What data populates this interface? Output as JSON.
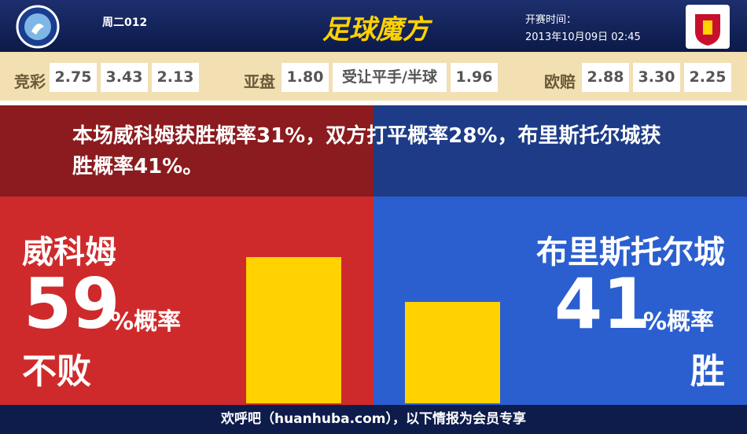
{
  "header": {
    "match_code": "周二012",
    "brand": "足球魔方",
    "kickoff_label": "开赛时间：",
    "kickoff_time": "2013年10月09日 02:45"
  },
  "odds": [
    {
      "label": "竞彩",
      "values": [
        "2.75",
        "3.43",
        "2.13"
      ]
    },
    {
      "label": "亚盘",
      "values": [
        "1.80",
        "受让平手/半球",
        "1.96"
      ]
    },
    {
      "label": "欧赔",
      "values": [
        "2.88",
        "3.30",
        "2.25"
      ]
    }
  ],
  "summary": "本场威科姆获胜概率31%，双方打平概率28%，布里斯托尔城获胜概率41%。",
  "home": {
    "team": "威科姆",
    "value": 59,
    "unit": "%概率",
    "outcome": "不败"
  },
  "away": {
    "team": "布里斯托尔城",
    "value": 41,
    "unit": "%概率",
    "outcome": "胜"
  },
  "footer": "欢呼吧（huanhuba.com），以下情报为会员专享"
}
